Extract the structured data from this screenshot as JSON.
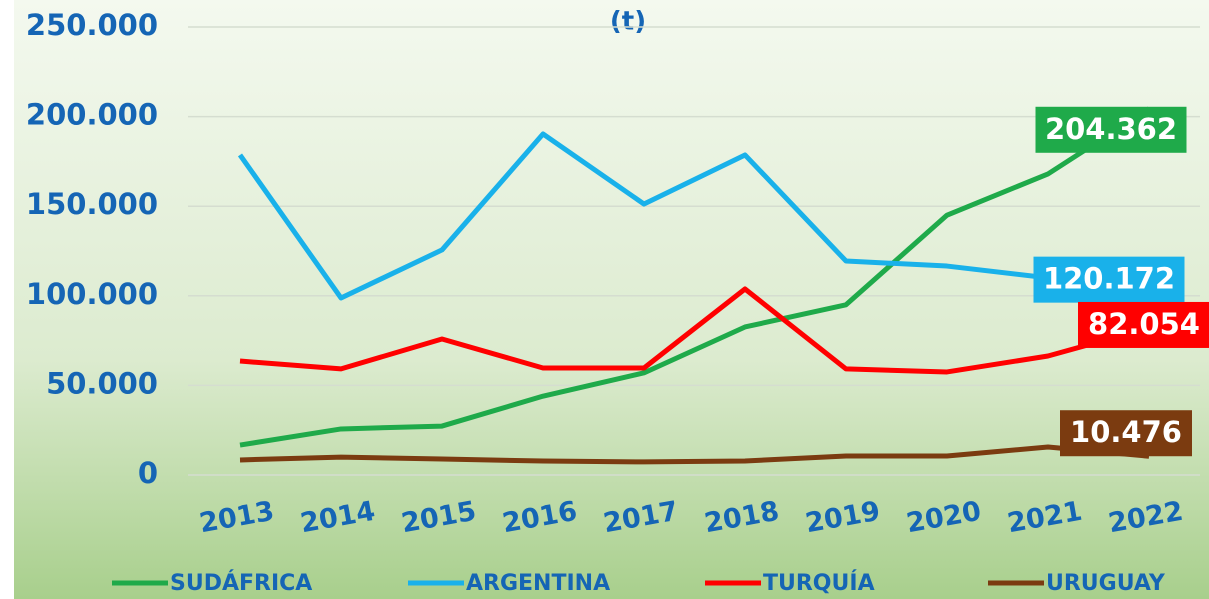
{
  "chart_data": {
    "type": "line",
    "title": "(t)",
    "categories": [
      "2013",
      "2014",
      "2015",
      "2016",
      "2017",
      "2018",
      "2019",
      "2020",
      "2021",
      "2022"
    ],
    "series": [
      {
        "name": "SUDÁFRICA",
        "color": "#1faa4a",
        "values": [
          16700,
          25700,
          27300,
          44000,
          57000,
          82600,
          95000,
          145000,
          168000,
          204362
        ],
        "value_labels": [
          null,
          null,
          null,
          null,
          null,
          null,
          null,
          null,
          null,
          "204.362"
        ]
      },
      {
        "name": "ARGENTINA",
        "color": "#19b1ea",
        "values": [
          178600,
          98800,
          125600,
          190300,
          151200,
          178600,
          119400,
          116600,
          110000,
          120172
        ],
        "value_labels": [
          null,
          null,
          null,
          null,
          null,
          null,
          null,
          null,
          null,
          "120.172"
        ]
      },
      {
        "name": "TURQUÍA",
        "color": "#ff0000",
        "values": [
          63600,
          59200,
          75900,
          59700,
          59700,
          103800,
          59200,
          57500,
          66400,
          82054
        ],
        "value_labels": [
          null,
          null,
          null,
          null,
          null,
          null,
          null,
          null,
          null,
          "82.054"
        ]
      },
      {
        "name": "URUGUAY",
        "color": "#7b3b10",
        "values": [
          8400,
          10000,
          8900,
          7800,
          7300,
          7800,
          10600,
          10600,
          15600,
          10476
        ],
        "value_labels": [
          null,
          null,
          null,
          null,
          null,
          null,
          null,
          null,
          null,
          "10.476"
        ]
      }
    ],
    "ylim": [
      0,
      250000
    ],
    "yticks": [
      0,
      {
        "value": 50000,
        "label": "50.000"
      },
      {
        "value": 100000,
        "label": "100.000"
      },
      {
        "value": 150000,
        "label": "150.000"
      },
      {
        "value": 200000,
        "label": "200.000"
      },
      {
        "value": 250000,
        "label": "250.000"
      }
    ],
    "grid": true
  }
}
